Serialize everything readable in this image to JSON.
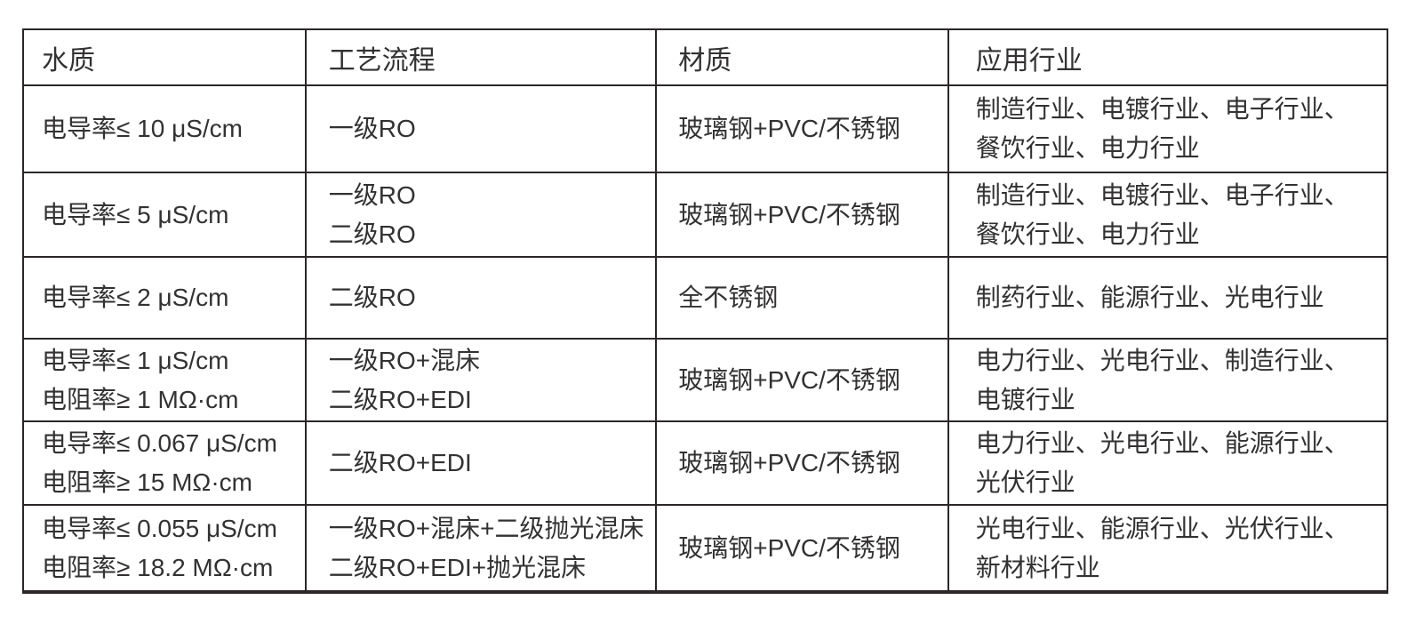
{
  "colors": {
    "border": "#2b2728",
    "text": "#333132",
    "background": "#ffffff"
  },
  "table": {
    "headers": [
      "水质",
      "工艺流程",
      "材质",
      "应用行业"
    ],
    "column_keys": [
      "water_quality",
      "process_flow",
      "material",
      "application_industries"
    ],
    "rows": [
      {
        "water_quality": [
          "电导率≤ 10 μS/cm"
        ],
        "process_flow": [
          "一级RO"
        ],
        "material": [
          "玻璃钢+PVC/不锈钢"
        ],
        "application_industries": [
          "制造行业、电镀行业、电子行业、",
          "餐饮行业、电力行业"
        ]
      },
      {
        "water_quality": [
          "电导率≤ 5 μS/cm"
        ],
        "process_flow": [
          "一级RO",
          "二级RO"
        ],
        "material": [
          "玻璃钢+PVC/不锈钢"
        ],
        "application_industries": [
          "制造行业、电镀行业、电子行业、",
          "餐饮行业、电力行业"
        ]
      },
      {
        "water_quality": [
          "电导率≤ 2 μS/cm"
        ],
        "process_flow": [
          "二级RO"
        ],
        "material": [
          "全不锈钢"
        ],
        "application_industries": [
          "制药行业、能源行业、光电行业"
        ]
      },
      {
        "water_quality": [
          "电导率≤ 1 μS/cm",
          "电阻率≥ 1 MΩ·cm"
        ],
        "process_flow": [
          "一级RO+混床",
          "二级RO+EDI"
        ],
        "material": [
          "玻璃钢+PVC/不锈钢"
        ],
        "application_industries": [
          "电力行业、光电行业、制造行业、",
          "电镀行业"
        ]
      },
      {
        "water_quality": [
          "电导率≤ 0.067 μS/cm",
          "电阻率≥ 15 MΩ·cm"
        ],
        "process_flow": [
          "二级RO+EDI"
        ],
        "material": [
          "玻璃钢+PVC/不锈钢"
        ],
        "application_industries": [
          "电力行业、光电行业、能源行业、",
          "光伏行业"
        ]
      },
      {
        "water_quality": [
          "电导率≤ 0.055 μS/cm",
          "电阻率≥ 18.2 MΩ·cm"
        ],
        "process_flow": [
          "一级RO+混床+二级抛光混床",
          "二级RO+EDI+抛光混床"
        ],
        "material": [
          "玻璃钢+PVC/不锈钢"
        ],
        "application_industries": [
          "光电行业、能源行业、光伏行业、",
          "新材料行业"
        ]
      }
    ]
  }
}
